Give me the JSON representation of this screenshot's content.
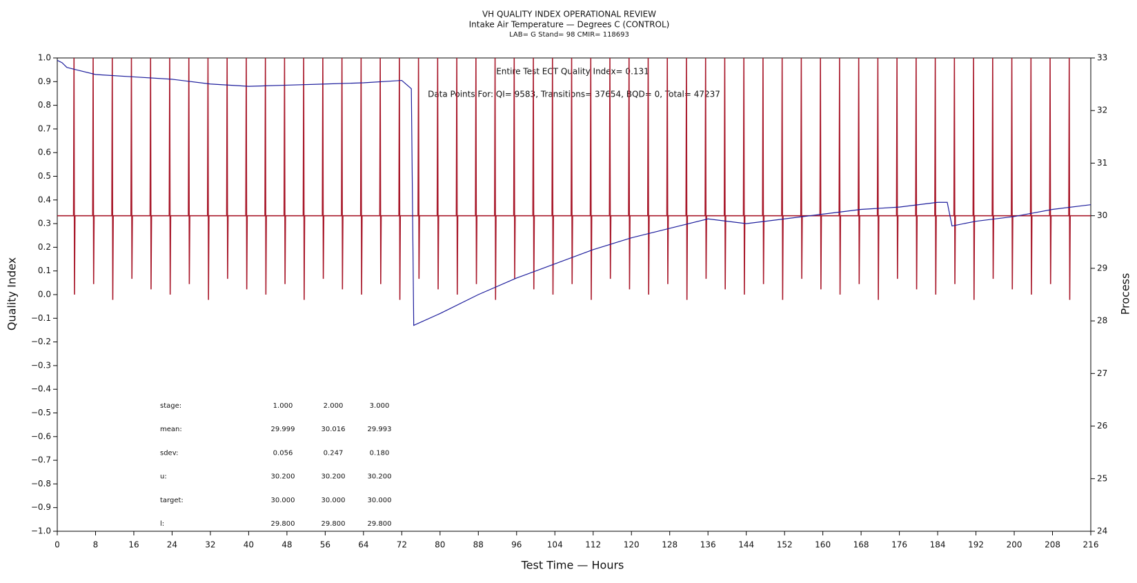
{
  "chart_data": {
    "type": "line",
    "title": "VH QUALITY INDEX OPERATIONAL REVIEW",
    "subtitle": "Intake Air Temperature — Degrees C (CONTROL)",
    "caption": "LAB= G Stand= 98 CMIR= 118693",
    "annotations": [
      "Entire Test ECT Quality Index=   0.131",
      "Data Points For: QI=  9583, Transitions= 37654, BQD=     0, Total= 47237"
    ],
    "stats_table": [
      [
        "stage:",
        "1.000",
        "2.000",
        "3.000"
      ],
      [
        "mean:",
        "29.999",
        "30.016",
        "29.993"
      ],
      [
        "sdev:",
        "0.056",
        "0.247",
        "0.180"
      ],
      [
        "u:",
        "30.200",
        "30.200",
        "30.200"
      ],
      [
        "target:",
        "30.000",
        "30.000",
        "30.000"
      ],
      [
        "l:",
        "29.800",
        "29.800",
        "29.800"
      ]
    ],
    "x_label": "Test Time — Hours",
    "y_label": "Quality Index",
    "y2_label": "Process",
    "xlim": [
      0,
      216
    ],
    "xticks": [
      0,
      8,
      16,
      24,
      32,
      40,
      48,
      56,
      64,
      72,
      80,
      88,
      96,
      104,
      112,
      120,
      128,
      136,
      144,
      152,
      160,
      168,
      176,
      184,
      192,
      200,
      208,
      216
    ],
    "ylim": [
      -1,
      1
    ],
    "yticks": [
      {
        "value": 1,
        "label": "1.0"
      },
      {
        "value": 0.9,
        "label": "0.9"
      },
      {
        "value": 0.8,
        "label": "0.8"
      },
      {
        "value": 0.7,
        "label": "0.7"
      },
      {
        "value": 0.6,
        "label": "0.6"
      },
      {
        "value": 0.5,
        "label": "0.5"
      },
      {
        "value": 0.4,
        "label": "0.4"
      },
      {
        "value": 0.3,
        "label": "0.3"
      },
      {
        "value": 0.2,
        "label": "0.2"
      },
      {
        "value": 0.1,
        "label": "0.1"
      },
      {
        "value": 0,
        "label": "0.0"
      },
      {
        "value": -0.1,
        "label": "−0.1"
      },
      {
        "value": -0.2,
        "label": "−0.2"
      },
      {
        "value": -0.3,
        "label": "−0.3"
      },
      {
        "value": -0.4,
        "label": "−0.4"
      },
      {
        "value": -0.5,
        "label": "−0.5"
      },
      {
        "value": -0.6,
        "label": "−0.6"
      },
      {
        "value": -0.7,
        "label": "−0.7"
      },
      {
        "value": -0.8,
        "label": "−0.8"
      },
      {
        "value": -0.9,
        "label": "−0.9"
      },
      {
        "value": -1,
        "label": "−1.0"
      }
    ],
    "y2lim": [
      24,
      33
    ],
    "y2ticks": [
      24,
      25,
      26,
      27,
      28,
      29,
      30,
      31,
      32,
      33
    ],
    "series": [
      {
        "color": "#a8182a",
        "axis": "y2",
        "x": [
          0,
          3.4,
          3.5,
          3.6,
          3.7,
          7.4,
          7.5,
          7.6,
          7.7,
          11.4,
          11.5,
          11.6,
          11.7,
          15.4,
          15.5,
          15.6,
          15.7,
          19.4,
          19.5,
          19.6,
          19.7,
          23.4,
          23.5,
          23.6,
          23.7,
          27.4,
          27.5,
          27.6,
          27.7,
          31.4,
          31.5,
          31.6,
          31.7,
          35.4,
          35.5,
          35.6,
          35.7,
          39.4,
          39.5,
          39.6,
          39.7,
          43.4,
          43.5,
          43.6,
          43.7,
          47.4,
          47.5,
          47.6,
          47.7,
          51.4,
          51.5,
          51.6,
          51.7,
          55.4,
          55.5,
          55.6,
          55.7,
          59.4,
          59.5,
          59.6,
          59.7,
          63.4,
          63.5,
          63.6,
          63.7,
          67.4,
          67.5,
          67.6,
          67.7,
          71.4,
          71.5,
          71.6,
          71.7,
          75.4,
          75.5,
          75.6,
          75.7,
          79.4,
          79.5,
          79.6,
          79.7,
          83.4,
          83.5,
          83.6,
          83.7,
          87.4,
          87.5,
          87.6,
          87.7,
          91.4,
          91.5,
          91.6,
          91.7,
          95.4,
          95.5,
          95.6,
          95.7,
          99.4,
          99.5,
          99.6,
          99.7,
          103.4,
          103.5,
          103.6,
          103.7,
          107.4,
          107.5,
          107.6,
          107.7,
          111.4,
          111.5,
          111.6,
          111.7,
          115.4,
          115.5,
          115.6,
          115.7,
          119.4,
          119.5,
          119.6,
          119.7,
          123.4,
          123.5,
          123.6,
          123.7,
          127.4,
          127.5,
          127.6,
          127.7,
          131.4,
          131.5,
          131.6,
          131.7,
          135.4,
          135.5,
          135.6,
          135.7,
          139.4,
          139.5,
          139.6,
          139.7,
          143.4,
          143.5,
          143.6,
          143.7,
          147.4,
          147.5,
          147.6,
          147.7,
          151.4,
          151.5,
          151.6,
          151.7,
          155.4,
          155.5,
          155.6,
          155.7,
          159.4,
          159.5,
          159.6,
          159.7,
          163.4,
          163.5,
          163.6,
          163.7,
          167.4,
          167.5,
          167.6,
          167.7,
          171.4,
          171.5,
          171.6,
          171.7,
          175.4,
          175.5,
          175.6,
          175.7,
          179.4,
          179.5,
          179.6,
          179.7,
          183.4,
          183.5,
          183.6,
          183.7,
          187.4,
          187.5,
          187.6,
          187.7,
          191.4,
          191.5,
          191.6,
          191.7,
          195.4,
          195.5,
          195.6,
          195.7,
          199.4,
          199.5,
          199.6,
          199.7,
          203.4,
          203.5,
          203.6,
          203.7,
          207.4,
          207.5,
          207.6,
          207.7,
          211.4,
          211.5,
          211.6,
          211.7,
          216
        ],
        "values": [
          30,
          30,
          33,
          28.5,
          30,
          30,
          33,
          28.7,
          30,
          30,
          33,
          28.4,
          30,
          30,
          33,
          28.8,
          30,
          30,
          33,
          28.6,
          30,
          30,
          33,
          28.5,
          30,
          30,
          33,
          28.7,
          30,
          30,
          33,
          28.4,
          30,
          30,
          33,
          28.8,
          30,
          30,
          33,
          28.6,
          30,
          30,
          33,
          28.5,
          30,
          30,
          33,
          28.7,
          30,
          30,
          33,
          28.4,
          30,
          30,
          33,
          28.8,
          30,
          30,
          33,
          28.6,
          30,
          30,
          33,
          28.5,
          30,
          30,
          33,
          28.7,
          30,
          30,
          33,
          28.4,
          30,
          30,
          33,
          28.8,
          30,
          30,
          33,
          28.6,
          30,
          30,
          33,
          28.5,
          30,
          30,
          33,
          28.7,
          30,
          30,
          33,
          28.4,
          30,
          30,
          33,
          28.8,
          30,
          30,
          33,
          28.6,
          30,
          30,
          33,
          28.5,
          30,
          30,
          33,
          28.7,
          30,
          30,
          33,
          28.4,
          30,
          30,
          33,
          28.8,
          30,
          30,
          33,
          28.6,
          30,
          30,
          33,
          28.5,
          30,
          30,
          33,
          28.7,
          30,
          30,
          33,
          28.4,
          30,
          30,
          33,
          28.8,
          30,
          30,
          33,
          28.6,
          30,
          30,
          33,
          28.5,
          30,
          30,
          33,
          28.7,
          30,
          30,
          33,
          28.4,
          30,
          30,
          33,
          28.8,
          30,
          30,
          33,
          28.6,
          30,
          30,
          33,
          28.5,
          30,
          30,
          33,
          28.7,
          30,
          30,
          33,
          28.4,
          30,
          30,
          33,
          28.8,
          30,
          30,
          33,
          28.6,
          30,
          30,
          33,
          28.5,
          30,
          30,
          33,
          28.7,
          30,
          30,
          33,
          28.4,
          30,
          30,
          33,
          28.8,
          30,
          30,
          33,
          28.6,
          30,
          30,
          33,
          28.5,
          30,
          30,
          33,
          28.7,
          30,
          30,
          33,
          28.4,
          30,
          30
        ]
      },
      {
        "color": "#1c1c9c",
        "x": [
          0,
          1,
          2,
          4,
          8,
          16,
          24,
          32,
          40,
          48,
          56,
          64,
          72,
          74,
          74.5,
          80,
          88,
          96,
          104,
          112,
          120,
          128,
          136,
          144,
          152,
          160,
          168,
          176,
          184,
          186,
          187,
          192,
          200,
          208,
          216
        ],
        "values": [
          0.99,
          0.98,
          0.96,
          0.95,
          0.93,
          0.92,
          0.91,
          0.89,
          0.88,
          0.885,
          0.89,
          0.895,
          0.905,
          0.87,
          -0.13,
          -0.08,
          0.0,
          0.07,
          0.13,
          0.19,
          0.24,
          0.28,
          0.32,
          0.3,
          0.32,
          0.34,
          0.36,
          0.37,
          0.39,
          0.39,
          0.29,
          0.31,
          0.33,
          0.36,
          0.38
        ]
      }
    ]
  }
}
